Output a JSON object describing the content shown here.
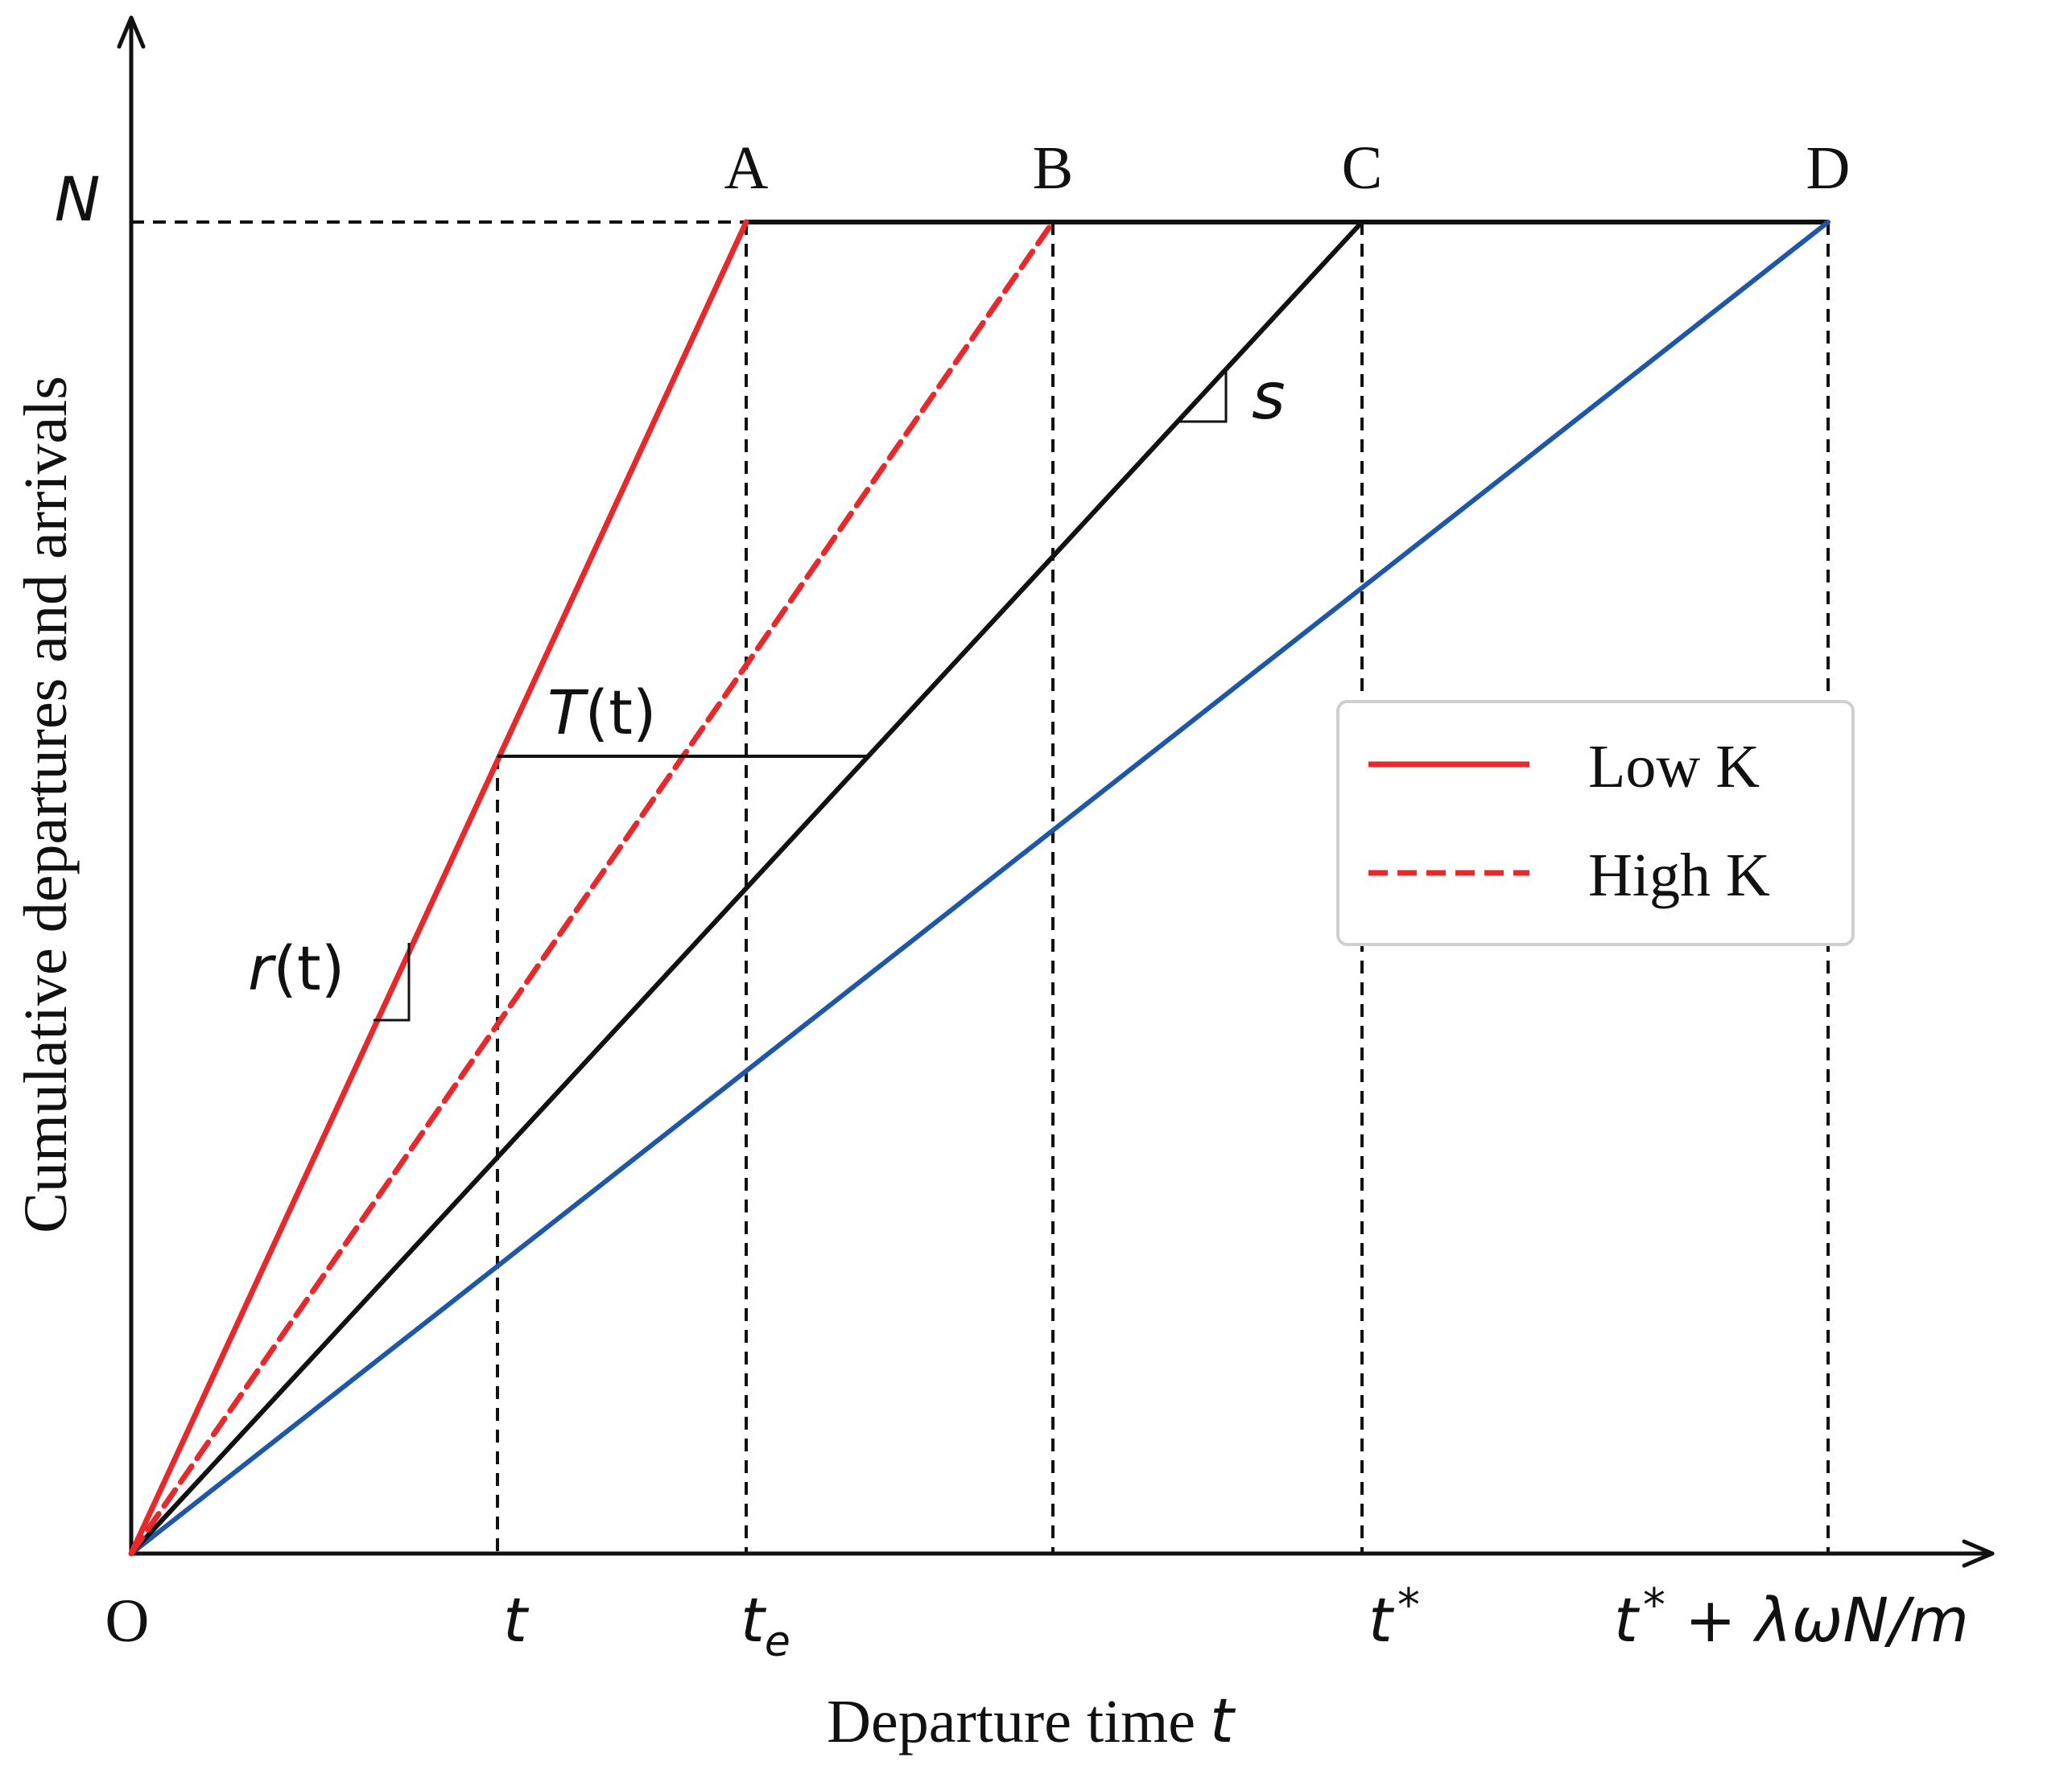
{
  "axes": {
    "y_label": "Cumulative departures and arrivals",
    "x_label": "Departure time",
    "x_label_var": "t",
    "y_tick_N": "N",
    "origin": "O"
  },
  "x_ticks": {
    "t": "t",
    "te_base": "t",
    "te_sub": "e",
    "tstar": "t",
    "tstar_sup": "*",
    "tend_base": "t",
    "tend_sup": "*",
    "tend_rest": " + λωN/m"
  },
  "points": {
    "A": "A",
    "B": "B",
    "C": "C",
    "D": "D"
  },
  "annotations": {
    "r_var": "r",
    "r_arg": "(t)",
    "T_var": "T",
    "T_arg": "(t)",
    "s": "s"
  },
  "legend": {
    "items": [
      {
        "label": "Low K",
        "color": "#e8282b",
        "style": "solid"
      },
      {
        "label": "High K",
        "color": "#e8282b",
        "style": "dashed"
      }
    ]
  },
  "colors": {
    "red": "#e8282b",
    "black": "#111111",
    "blue": "#1f57a8"
  }
}
